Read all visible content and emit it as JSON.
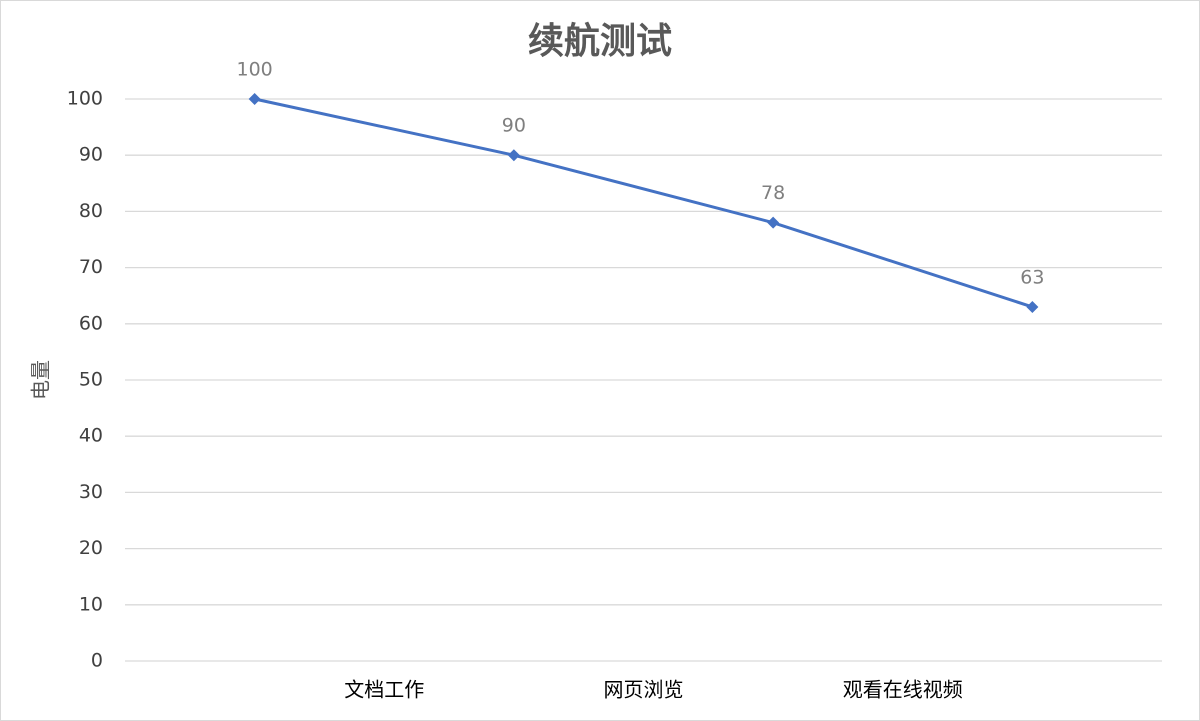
{
  "chart_data": {
    "type": "line",
    "title": "续航测试",
    "y_label": "电量",
    "categories": [
      null,
      "文档工作",
      "网页浏览",
      "观看在线视频"
    ],
    "series": [
      {
        "name": "电量",
        "color": "#4472c4",
        "values": [
          100,
          90,
          78,
          63
        ]
      }
    ],
    "ylim": [
      0,
      100
    ],
    "yticks": [
      0,
      10,
      20,
      30,
      40,
      50,
      60,
      70,
      80,
      90,
      100
    ],
    "grid": true
  }
}
